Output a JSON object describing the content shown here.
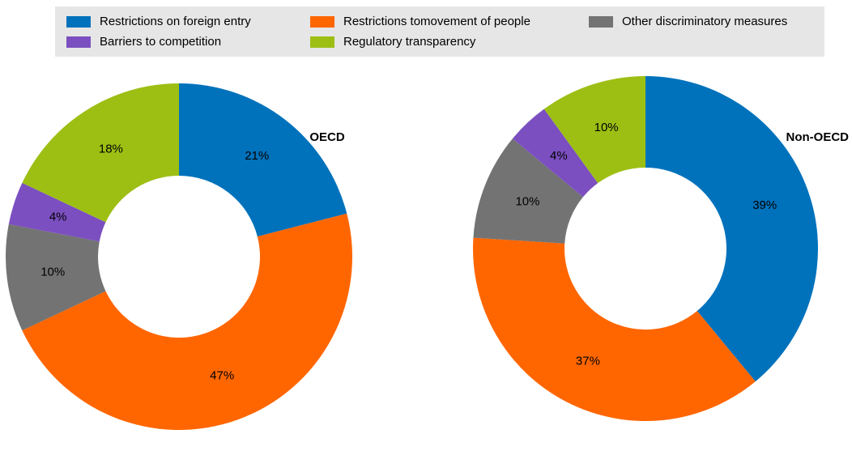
{
  "chart_data": [
    {
      "type": "pie",
      "title": "OECD",
      "categories": [
        "Restrictions on foreign entry",
        "Restrictions tomovement of people",
        "Other discriminatory measures",
        "Barriers to competition",
        "Regulatory transparency"
      ],
      "values": [
        21,
        47,
        10,
        4,
        18
      ],
      "value_labels": [
        "21%",
        "47%",
        "10%",
        "4%",
        "18%"
      ],
      "colors": [
        "#0072bc",
        "#ff6600",
        "#737373",
        "#7b4fc0",
        "#9dbf14"
      ]
    },
    {
      "type": "pie",
      "title": "Non-OECD",
      "categories": [
        "Restrictions on foreign entry",
        "Restrictions tomovement of people",
        "Other discriminatory measures",
        "Barriers to competition",
        "Regulatory transparency"
      ],
      "values": [
        39,
        37,
        10,
        4,
        10
      ],
      "value_labels": [
        "39%",
        "37%",
        "10%",
        "4%",
        "10%"
      ],
      "colors": [
        "#0072bc",
        "#ff6600",
        "#737373",
        "#7b4fc0",
        "#9dbf14"
      ]
    }
  ]
}
